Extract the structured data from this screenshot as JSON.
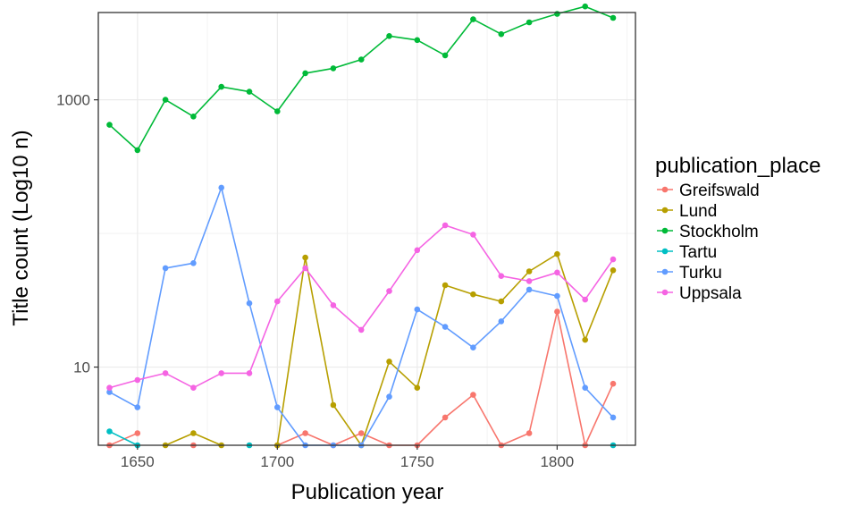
{
  "chart_data": {
    "type": "line",
    "xlabel": "Publication year",
    "ylabel": "Title count (Log10 n)",
    "y_scale": "log10",
    "xlim": [
      1636,
      1828
    ],
    "ylim": [
      2.6,
      4500
    ],
    "x_ticks": [
      1650,
      1700,
      1750,
      1800
    ],
    "x_tick_labels": [
      "1650",
      "1700",
      "1750",
      "1800"
    ],
    "y_ticks": [
      10,
      1000
    ],
    "y_tick_labels": [
      "10",
      "1000"
    ],
    "grid": true,
    "legend_title": "publication_place",
    "legend_position": "right",
    "x": [
      1640,
      1650,
      1660,
      1670,
      1680,
      1690,
      1700,
      1710,
      1720,
      1730,
      1740,
      1750,
      1760,
      1770,
      1780,
      1790,
      1800,
      1810,
      1820
    ],
    "series": [
      {
        "name": "Greifswald",
        "color": "#F8766D",
        "values": [
          2.6,
          3.2,
          null,
          2.6,
          null,
          null,
          2.6,
          3.2,
          2.6,
          3.2,
          2.6,
          2.6,
          4.2,
          6.2,
          2.6,
          3.2,
          26,
          2.6,
          7.5
        ]
      },
      {
        "name": "Lund",
        "color": "#B79F00",
        "values": [
          null,
          null,
          2.6,
          3.2,
          2.6,
          null,
          2.6,
          66,
          5.2,
          2.6,
          11,
          7,
          41,
          35,
          31,
          52,
          70,
          16,
          53
        ]
      },
      {
        "name": "Stockholm",
        "color": "#00BA38",
        "values": [
          650,
          420,
          1000,
          750,
          1250,
          1150,
          820,
          1580,
          1720,
          2000,
          3000,
          2800,
          2150,
          4000,
          3100,
          3800,
          4400,
          5000,
          4100
        ]
      },
      {
        "name": "Tartu",
        "color": "#00BFC4",
        "values": [
          3.3,
          2.6,
          null,
          null,
          null,
          2.6,
          null,
          null,
          null,
          null,
          null,
          null,
          null,
          null,
          null,
          null,
          null,
          null,
          2.6
        ]
      },
      {
        "name": "Turku",
        "color": "#619CFF",
        "values": [
          6.5,
          5,
          55,
          60,
          220,
          30,
          5,
          2.6,
          2.6,
          2.6,
          6,
          27,
          20,
          14,
          22,
          38,
          34,
          7,
          4.2
        ]
      },
      {
        "name": "Uppsala",
        "color": "#F564E3",
        "values": [
          7,
          8,
          9,
          7,
          9,
          9,
          31,
          55,
          29,
          19,
          37,
          75,
          115,
          98,
          48,
          44,
          51,
          32,
          64
        ]
      }
    ]
  }
}
